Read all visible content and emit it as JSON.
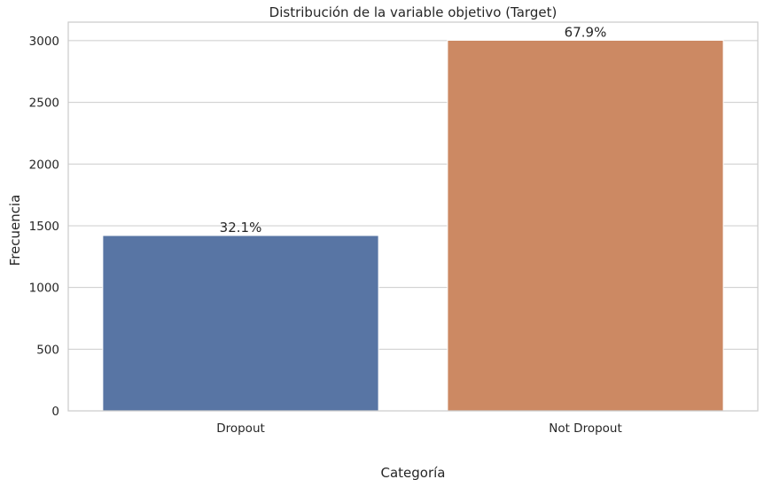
{
  "chart_data": {
    "type": "bar",
    "title": "Distribución de la variable objetivo (Target)",
    "xlabel": "Categoría",
    "ylabel": "Frecuencia",
    "categories": [
      "Dropout",
      "Not Dropout"
    ],
    "values": [
      1421,
      3003
    ],
    "data_labels": [
      "32.1%",
      "67.9%"
    ],
    "colors": [
      "#5875a4",
      "#cc8963"
    ],
    "ylim": [
      0,
      3150
    ],
    "yticks": [
      0,
      500,
      1000,
      1500,
      2000,
      2500,
      3000
    ],
    "grid": true,
    "legend": "none"
  }
}
